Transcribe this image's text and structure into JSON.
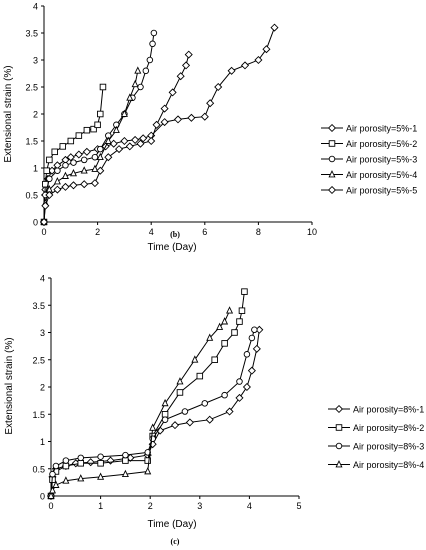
{
  "chart_data": [
    {
      "type": "line",
      "panel_label": "(b)",
      "xlabel": "Time (Day)",
      "ylabel": "Extensional strain (%)",
      "xlim": [
        0,
        10
      ],
      "ylim": [
        0,
        4
      ],
      "xticks": [
        0,
        2,
        4,
        6,
        8,
        10
      ],
      "yticks": [
        0,
        0.5,
        1,
        1.5,
        2,
        2.5,
        3,
        3.5,
        4
      ],
      "grid": false,
      "legend_position": "right",
      "series": [
        {
          "name": "Air porosity=5%-1",
          "marker": "diamond",
          "x": [
            0,
            0.05,
            0.15,
            0.3,
            0.5,
            0.8,
            1.0,
            1.3,
            1.6,
            2.0,
            2.3,
            2.6,
            3.0,
            3.4,
            3.7,
            4.0,
            4.5,
            5.0,
            5.5,
            6.0,
            6.2,
            6.5,
            7.0,
            7.5,
            8.0,
            8.3,
            8.6
          ],
          "y": [
            0,
            0.6,
            0.8,
            0.95,
            1.05,
            1.15,
            1.2,
            1.25,
            1.3,
            1.35,
            1.4,
            1.45,
            1.5,
            1.52,
            1.55,
            1.6,
            1.85,
            1.9,
            1.93,
            1.95,
            2.2,
            2.5,
            2.8,
            2.9,
            3.0,
            3.2,
            3.6
          ]
        },
        {
          "name": "Air porosity=5%-2",
          "marker": "square",
          "x": [
            0,
            0.05,
            0.1,
            0.2,
            0.4,
            0.7,
            1.0,
            1.3,
            1.6,
            1.85,
            2.0,
            2.1,
            2.2
          ],
          "y": [
            0,
            0.7,
            0.95,
            1.15,
            1.3,
            1.4,
            1.5,
            1.6,
            1.7,
            1.72,
            1.8,
            2.0,
            2.5
          ]
        },
        {
          "name": "Air porosity=5%-3",
          "marker": "circle",
          "x": [
            0,
            0.05,
            0.2,
            0.5,
            0.8,
            1.1,
            1.5,
            1.9,
            2.1,
            2.4,
            2.7,
            3.0,
            3.3,
            3.6,
            3.8,
            3.95,
            4.05,
            4.1
          ],
          "y": [
            0,
            0.5,
            0.8,
            0.95,
            1.05,
            1.1,
            1.15,
            1.2,
            1.35,
            1.6,
            1.8,
            2.0,
            2.3,
            2.5,
            2.8,
            3.0,
            3.3,
            3.5
          ]
        },
        {
          "name": "Air porosity=5%-4",
          "marker": "triangle",
          "x": [
            0,
            0.05,
            0.2,
            0.5,
            0.8,
            1.1,
            1.5,
            1.9,
            2.1,
            2.4,
            2.7,
            3.0,
            3.2,
            3.4,
            3.5
          ],
          "y": [
            0,
            0.35,
            0.6,
            0.75,
            0.85,
            0.9,
            0.95,
            0.98,
            1.2,
            1.5,
            1.7,
            2.0,
            2.3,
            2.55,
            2.8
          ]
        },
        {
          "name": "Air porosity=5%-5",
          "marker": "diamond",
          "x": [
            0,
            0.05,
            0.2,
            0.5,
            0.8,
            1.1,
            1.5,
            1.9,
            2.1,
            2.4,
            2.8,
            3.2,
            3.6,
            4.0,
            4.2,
            4.5,
            4.8,
            5.1,
            5.3,
            5.4
          ],
          "y": [
            0,
            0.3,
            0.5,
            0.6,
            0.65,
            0.68,
            0.7,
            0.72,
            0.95,
            1.2,
            1.35,
            1.4,
            1.45,
            1.5,
            1.8,
            2.1,
            2.4,
            2.7,
            2.9,
            3.1
          ]
        }
      ]
    },
    {
      "type": "line",
      "panel_label": "(c)",
      "xlabel": "Time (Day)",
      "ylabel": "Extensional strain (%)",
      "xlim": [
        0,
        5
      ],
      "ylim": [
        0,
        4
      ],
      "xticks": [
        0,
        1,
        2,
        3,
        4,
        5
      ],
      "yticks": [
        0,
        0.5,
        1,
        1.5,
        2,
        2.5,
        3,
        3.5,
        4
      ],
      "grid": false,
      "legend_position": "right",
      "series": [
        {
          "name": "Air porosity=8%-1",
          "marker": "diamond",
          "x": [
            0,
            0.03,
            0.1,
            0.3,
            0.5,
            0.8,
            1.2,
            1.6,
            1.95,
            2.05,
            2.2,
            2.5,
            2.8,
            3.2,
            3.6,
            3.8,
            3.95,
            4.05,
            4.15,
            4.2
          ],
          "y": [
            0,
            0.35,
            0.5,
            0.55,
            0.6,
            0.62,
            0.65,
            0.7,
            0.75,
            0.95,
            1.2,
            1.3,
            1.35,
            1.4,
            1.55,
            1.8,
            2.0,
            2.3,
            2.7,
            3.05
          ]
        },
        {
          "name": "Air porosity=8%-2",
          "marker": "square",
          "x": [
            0,
            0.03,
            0.1,
            0.3,
            0.6,
            1.0,
            1.5,
            1.95,
            2.05,
            2.3,
            2.6,
            3.0,
            3.3,
            3.5,
            3.7,
            3.8,
            3.85,
            3.9
          ],
          "y": [
            0,
            0.3,
            0.45,
            0.55,
            0.6,
            0.6,
            0.65,
            0.65,
            1.1,
            1.5,
            1.9,
            2.2,
            2.5,
            2.8,
            3.0,
            3.2,
            3.4,
            3.75
          ]
        },
        {
          "name": "Air porosity=8%-3",
          "marker": "circle",
          "x": [
            0,
            0.03,
            0.1,
            0.3,
            0.6,
            1.0,
            1.5,
            1.95,
            2.05,
            2.3,
            2.7,
            3.1,
            3.5,
            3.8,
            3.95,
            4.05,
            4.1
          ],
          "y": [
            0,
            0.4,
            0.55,
            0.65,
            0.7,
            0.72,
            0.75,
            0.8,
            1.05,
            1.4,
            1.55,
            1.7,
            1.85,
            2.1,
            2.6,
            2.9,
            3.05
          ]
        },
        {
          "name": "Air porosity=8%-4",
          "marker": "triangle",
          "x": [
            0,
            0.03,
            0.1,
            0.3,
            0.6,
            1.0,
            1.5,
            1.95,
            2.05,
            2.3,
            2.6,
            2.9,
            3.2,
            3.4,
            3.5,
            3.6
          ],
          "y": [
            0,
            0.1,
            0.2,
            0.28,
            0.32,
            0.35,
            0.4,
            0.45,
            1.25,
            1.7,
            2.1,
            2.5,
            2.9,
            3.1,
            3.2,
            3.4
          ]
        }
      ]
    }
  ]
}
